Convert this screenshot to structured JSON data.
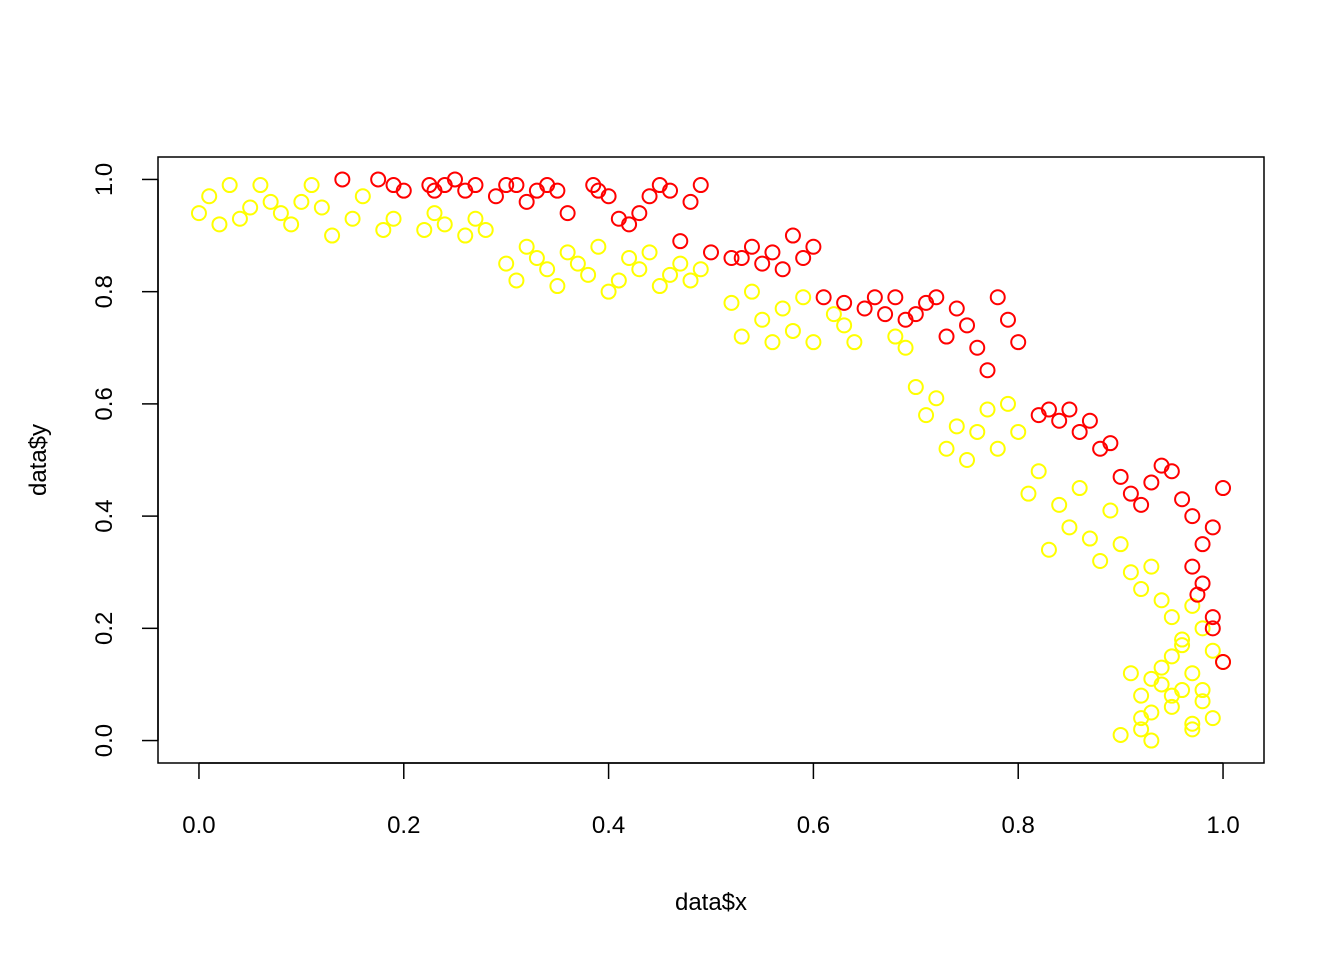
{
  "chart_data": {
    "type": "scatter",
    "title": "",
    "xlabel": "data$x",
    "ylabel": "data$y",
    "xlim": [
      -0.04,
      1.04
    ],
    "ylim": [
      -0.04,
      1.04
    ],
    "x_ticks": [
      0.0,
      0.2,
      0.4,
      0.6,
      0.8,
      1.0
    ],
    "x_tick_labels": [
      "0.0",
      "0.2",
      "0.4",
      "0.6",
      "0.8",
      "1.0"
    ],
    "y_ticks": [
      0.0,
      0.2,
      0.4,
      0.6,
      0.8,
      1.0
    ],
    "y_tick_labels": [
      "0.0",
      "0.2",
      "0.4",
      "0.6",
      "0.8",
      "1.0"
    ],
    "grid": false,
    "legend": "none",
    "marker": "open-circle",
    "series": [
      {
        "color": "#FF0000",
        "x": [
          0.14,
          0.175,
          0.19,
          0.2,
          0.225,
          0.23,
          0.24,
          0.25,
          0.26,
          0.27,
          0.29,
          0.3,
          0.31,
          0.32,
          0.33,
          0.34,
          0.35,
          0.36,
          0.385,
          0.39,
          0.4,
          0.41,
          0.42,
          0.43,
          0.44,
          0.45,
          0.46,
          0.47,
          0.48,
          0.49,
          0.5,
          0.52,
          0.53,
          0.54,
          0.55,
          0.56,
          0.57,
          0.58,
          0.59,
          0.6,
          0.61,
          0.63,
          0.65,
          0.66,
          0.67,
          0.68,
          0.69,
          0.7,
          0.71,
          0.72,
          0.73,
          0.74,
          0.75,
          0.76,
          0.77,
          0.78,
          0.79,
          0.8,
          0.82,
          0.83,
          0.84,
          0.85,
          0.86,
          0.87,
          0.88,
          0.89,
          0.9,
          0.91,
          0.92,
          0.93,
          0.94,
          0.95,
          0.96,
          0.97,
          0.98,
          0.99,
          1.0,
          0.97,
          0.98,
          0.99,
          1.0,
          0.975,
          0.99
        ],
        "y": [
          1.0,
          1.0,
          0.99,
          0.98,
          0.99,
          0.98,
          0.99,
          1.0,
          0.98,
          0.99,
          0.97,
          0.99,
          0.99,
          0.96,
          0.98,
          0.99,
          0.98,
          0.94,
          0.99,
          0.98,
          0.97,
          0.93,
          0.92,
          0.94,
          0.97,
          0.99,
          0.98,
          0.89,
          0.96,
          0.99,
          0.87,
          0.86,
          0.86,
          0.88,
          0.85,
          0.87,
          0.84,
          0.9,
          0.86,
          0.88,
          0.79,
          0.78,
          0.77,
          0.79,
          0.76,
          0.79,
          0.75,
          0.76,
          0.78,
          0.79,
          0.72,
          0.77,
          0.74,
          0.7,
          0.66,
          0.79,
          0.75,
          0.71,
          0.58,
          0.59,
          0.57,
          0.59,
          0.55,
          0.57,
          0.52,
          0.53,
          0.47,
          0.44,
          0.42,
          0.46,
          0.49,
          0.48,
          0.43,
          0.4,
          0.35,
          0.38,
          0.45,
          0.31,
          0.28,
          0.2,
          0.14,
          0.26,
          0.22
        ]
      },
      {
        "color": "#FFFF00",
        "x": [
          0.0,
          0.01,
          0.02,
          0.03,
          0.04,
          0.05,
          0.06,
          0.07,
          0.08,
          0.09,
          0.1,
          0.11,
          0.12,
          0.13,
          0.15,
          0.16,
          0.18,
          0.19,
          0.22,
          0.23,
          0.24,
          0.26,
          0.27,
          0.28,
          0.3,
          0.31,
          0.32,
          0.33,
          0.34,
          0.35,
          0.36,
          0.37,
          0.38,
          0.39,
          0.4,
          0.41,
          0.42,
          0.43,
          0.44,
          0.45,
          0.46,
          0.47,
          0.48,
          0.49,
          0.52,
          0.53,
          0.54,
          0.55,
          0.56,
          0.57,
          0.58,
          0.59,
          0.6,
          0.62,
          0.63,
          0.64,
          0.68,
          0.69,
          0.7,
          0.71,
          0.72,
          0.73,
          0.74,
          0.75,
          0.76,
          0.77,
          0.78,
          0.79,
          0.8,
          0.81,
          0.82,
          0.83,
          0.84,
          0.85,
          0.86,
          0.87,
          0.88,
          0.89,
          0.9,
          0.91,
          0.92,
          0.93,
          0.94,
          0.95,
          0.96,
          0.97,
          0.98,
          0.99,
          1.0,
          0.91,
          0.92,
          0.93,
          0.94,
          0.95,
          0.96,
          0.97,
          0.98,
          0.99,
          0.92,
          0.93,
          0.94,
          0.95,
          0.96,
          0.97,
          0.98,
          0.9,
          0.92,
          0.93,
          0.95,
          0.97
        ],
        "y": [
          0.94,
          0.97,
          0.92,
          0.99,
          0.93,
          0.95,
          0.99,
          0.96,
          0.94,
          0.92,
          0.96,
          0.99,
          0.95,
          0.9,
          0.93,
          0.97,
          0.91,
          0.93,
          0.91,
          0.94,
          0.92,
          0.9,
          0.93,
          0.91,
          0.85,
          0.82,
          0.88,
          0.86,
          0.84,
          0.81,
          0.87,
          0.85,
          0.83,
          0.88,
          0.8,
          0.82,
          0.86,
          0.84,
          0.87,
          0.81,
          0.83,
          0.85,
          0.82,
          0.84,
          0.78,
          0.72,
          0.8,
          0.75,
          0.71,
          0.77,
          0.73,
          0.79,
          0.71,
          0.76,
          0.74,
          0.71,
          0.72,
          0.7,
          0.63,
          0.58,
          0.61,
          0.52,
          0.56,
          0.5,
          0.55,
          0.59,
          0.52,
          0.6,
          0.55,
          0.44,
          0.48,
          0.34,
          0.42,
          0.38,
          0.45,
          0.36,
          0.32,
          0.41,
          0.35,
          0.3,
          0.27,
          0.31,
          0.25,
          0.22,
          0.18,
          0.24,
          0.2,
          0.16,
          0.14,
          0.12,
          0.08,
          0.05,
          0.1,
          0.06,
          0.09,
          0.03,
          0.07,
          0.04,
          0.02,
          0.11,
          0.13,
          0.15,
          0.17,
          0.12,
          0.09,
          0.01,
          0.04,
          0.0,
          0.08,
          0.02
        ]
      }
    ]
  }
}
